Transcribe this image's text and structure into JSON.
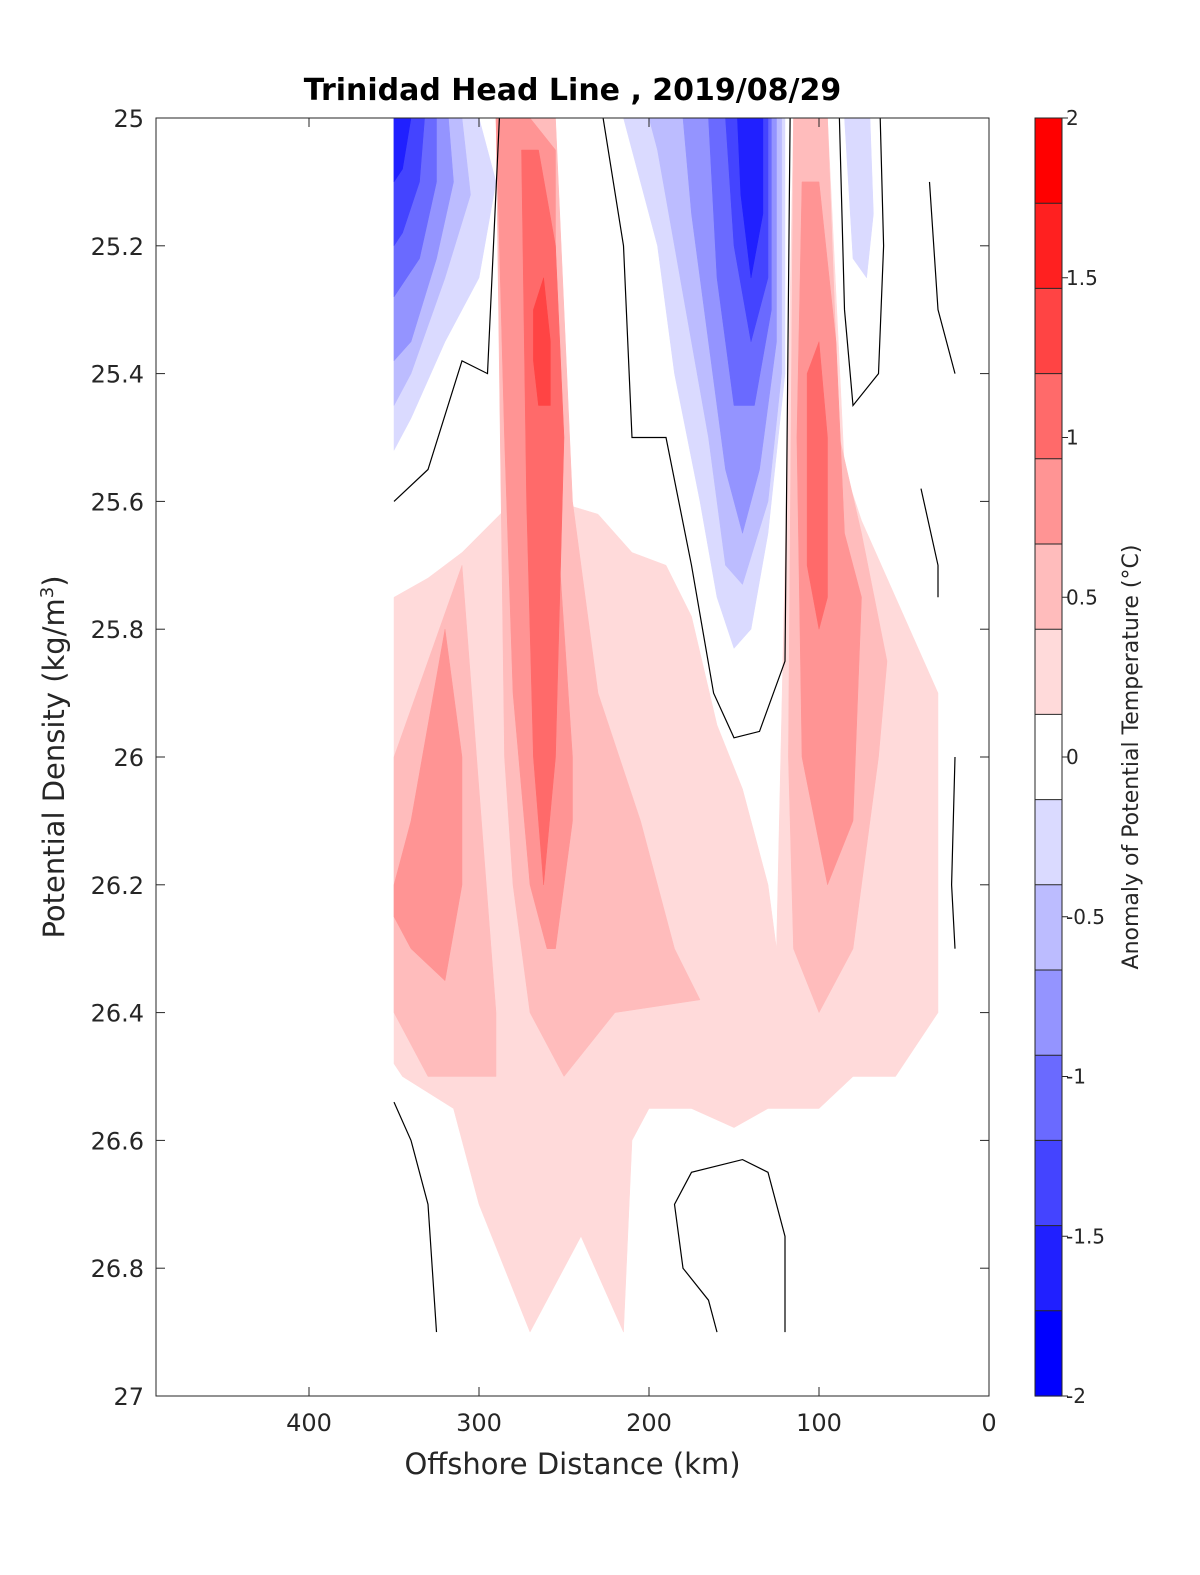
{
  "chart_data": {
    "type": "contour",
    "title": "Trinidad Head Line , 2019/08/29",
    "xlabel": "Offshore Distance (km)",
    "ylabel": "Potential Density (kg/m",
    "ylabel_sup": "3",
    "ylabel_close": ")",
    "xlim": [
      490,
      0
    ],
    "ylim": [
      25,
      27
    ],
    "x_reversed": true,
    "y_reversed": true,
    "xticks": [
      400,
      300,
      200,
      100,
      0
    ],
    "xtick_labels": [
      "400",
      "300",
      "200",
      "100",
      "0"
    ],
    "yticks": [
      25,
      25.2,
      25.4,
      25.6,
      25.8,
      26,
      26.2,
      26.4,
      26.6,
      26.8,
      27
    ],
    "ytick_labels": [
      "25",
      "25.2",
      "25.4",
      "25.6",
      "25.8",
      "26",
      "26.2",
      "26.4",
      "26.6",
      "26.8",
      "27"
    ],
    "colorbar": {
      "label": "Anomaly of Potential Temperature (°C)",
      "range": [
        -2,
        2
      ],
      "levels": [
        -2,
        -1.75,
        -1.5,
        -1.25,
        -1,
        -0.75,
        -0.5,
        -0.25,
        0.25,
        0.5,
        0.75,
        1,
        1.25,
        1.5,
        1.75,
        2
      ],
      "ticks": [
        2,
        1.5,
        1,
        0.5,
        0,
        -0.5,
        -1,
        -1.5,
        -2
      ],
      "tick_labels": [
        "2",
        "1.5",
        "1",
        "0.5",
        "0",
        "-0.5",
        "-1",
        "-1.5",
        "-2"
      ],
      "colors_top_to_bottom": [
        "#ff0000",
        "#ff2020",
        "#ff4444",
        "#ff6a6a",
        "#ff9494",
        "#ffbcbc",
        "#ffdada",
        "#ffffff",
        "#dadaff",
        "#bcbcff",
        "#9494ff",
        "#6a6aff",
        "#4444ff",
        "#2020ff",
        "#0000ff"
      ]
    },
    "regions": [
      {
        "level": 0.25,
        "color": "#ffdada",
        "polygon": [
          [
            350,
            25.75
          ],
          [
            330,
            25.72
          ],
          [
            310,
            25.68
          ],
          [
            280,
            25.6
          ],
          [
            255,
            25.6
          ],
          [
            230,
            25.62
          ],
          [
            210,
            25.68
          ],
          [
            190,
            25.7
          ],
          [
            175,
            25.78
          ],
          [
            160,
            25.95
          ],
          [
            145,
            26.05
          ],
          [
            130,
            26.2
          ],
          [
            125,
            26.3
          ],
          [
            120,
            25.7
          ],
          [
            115,
            25.0
          ],
          [
            95,
            25.0
          ],
          [
            85,
            25.55
          ],
          [
            75,
            25.63
          ],
          [
            55,
            25.75
          ],
          [
            30,
            25.9
          ],
          [
            30,
            26.4
          ],
          [
            55,
            26.5
          ],
          [
            80,
            26.5
          ],
          [
            100,
            26.55
          ],
          [
            130,
            26.55
          ],
          [
            150,
            26.58
          ],
          [
            175,
            26.55
          ],
          [
            200,
            26.55
          ],
          [
            210,
            26.6
          ],
          [
            215,
            26.9
          ],
          [
            240,
            26.75
          ],
          [
            270,
            26.9
          ],
          [
            300,
            26.7
          ],
          [
            315,
            26.55
          ],
          [
            345,
            26.5
          ],
          [
            350,
            26.48
          ]
        ]
      },
      {
        "level": 0.25,
        "color": "#ffdada",
        "polygon": [
          [
            290,
            25.0
          ],
          [
            285,
            25.58
          ],
          [
            270,
            25.6
          ],
          [
            260,
            25.0
          ]
        ]
      },
      {
        "level": 0.5,
        "color": "#ffbcbc",
        "polygon": [
          [
            350,
            26.0
          ],
          [
            330,
            25.85
          ],
          [
            310,
            25.7
          ],
          [
            290,
            26.4
          ],
          [
            290,
            26.5
          ],
          [
            330,
            26.5
          ],
          [
            350,
            26.4
          ]
        ]
      },
      {
        "level": 0.5,
        "color": "#ffbcbc",
        "polygon": [
          [
            290,
            25.0
          ],
          [
            275,
            25.0
          ],
          [
            255,
            25.0
          ],
          [
            245,
            25.6
          ],
          [
            230,
            25.9
          ],
          [
            205,
            26.1
          ],
          [
            185,
            26.3
          ],
          [
            170,
            26.38
          ],
          [
            220,
            26.4
          ],
          [
            250,
            26.5
          ],
          [
            270,
            26.4
          ],
          [
            280,
            26.2
          ],
          [
            285,
            26.0
          ]
        ]
      },
      {
        "level": 0.5,
        "color": "#ffbcbc",
        "polygon": [
          [
            115,
            25.0
          ],
          [
            95,
            25.0
          ],
          [
            88,
            25.5
          ],
          [
            75,
            25.65
          ],
          [
            60,
            25.85
          ],
          [
            65,
            26.0
          ],
          [
            80,
            26.3
          ],
          [
            100,
            26.4
          ],
          [
            115,
            26.3
          ],
          [
            118,
            26.0
          ]
        ]
      },
      {
        "level": 0.75,
        "color": "#ff9494",
        "polygon": [
          [
            290,
            25.0
          ],
          [
            270,
            25.0
          ],
          [
            255,
            25.05
          ],
          [
            255,
            25.6
          ],
          [
            245,
            26.0
          ],
          [
            245,
            26.1
          ],
          [
            255,
            26.3
          ],
          [
            260,
            26.3
          ],
          [
            270,
            26.2
          ],
          [
            280,
            25.9
          ],
          [
            285,
            25.5
          ]
        ]
      },
      {
        "level": 0.75,
        "color": "#ff9494",
        "polygon": [
          [
            350,
            26.2
          ],
          [
            340,
            26.1
          ],
          [
            320,
            25.8
          ],
          [
            310,
            26.0
          ],
          [
            310,
            26.2
          ],
          [
            320,
            26.35
          ],
          [
            340,
            26.3
          ],
          [
            350,
            26.25
          ]
        ]
      },
      {
        "level": 0.75,
        "color": "#ff9494",
        "polygon": [
          [
            110,
            25.1
          ],
          [
            100,
            25.1
          ],
          [
            90,
            25.35
          ],
          [
            85,
            25.65
          ],
          [
            75,
            25.75
          ],
          [
            80,
            26.1
          ],
          [
            95,
            26.2
          ],
          [
            110,
            26.0
          ],
          [
            113,
            25.5
          ]
        ]
      },
      {
        "level": 1.0,
        "color": "#ff6a6a",
        "polygon": [
          [
            275,
            25.05
          ],
          [
            265,
            25.05
          ],
          [
            255,
            25.2
          ],
          [
            250,
            25.5
          ],
          [
            255,
            26.0
          ],
          [
            262,
            26.2
          ],
          [
            268,
            26.0
          ],
          [
            272,
            25.6
          ]
        ]
      },
      {
        "level": 1.0,
        "color": "#ff6a6a",
        "polygon": [
          [
            107,
            25.4
          ],
          [
            100,
            25.35
          ],
          [
            95,
            25.5
          ],
          [
            95,
            25.75
          ],
          [
            100,
            25.8
          ],
          [
            107,
            25.7
          ]
        ]
      },
      {
        "level": 1.25,
        "color": "#ff4444",
        "polygon": [
          [
            268,
            25.3
          ],
          [
            262,
            25.25
          ],
          [
            258,
            25.35
          ],
          [
            258,
            25.45
          ],
          [
            265,
            25.45
          ],
          [
            268,
            25.38
          ]
        ]
      },
      {
        "level": -0.25,
        "color": "#dadaff",
        "polygon": [
          [
            350,
            25.0
          ],
          [
            300,
            25.0
          ],
          [
            290,
            25.1
          ],
          [
            300,
            25.25
          ],
          [
            320,
            25.35
          ],
          [
            340,
            25.47
          ],
          [
            350,
            25.52
          ]
        ]
      },
      {
        "level": -0.25,
        "color": "#dadaff",
        "polygon": [
          [
            215,
            25.0
          ],
          [
            120,
            25.0
          ],
          [
            120,
            25.4
          ],
          [
            130,
            25.65
          ],
          [
            140,
            25.8
          ],
          [
            150,
            25.83
          ],
          [
            160,
            25.75
          ],
          [
            170,
            25.6
          ],
          [
            185,
            25.4
          ],
          [
            195,
            25.2
          ],
          [
            210,
            25.05
          ]
        ]
      },
      {
        "level": -0.25,
        "color": "#dadaff",
        "polygon": [
          [
            85,
            25.0
          ],
          [
            70,
            25.0
          ],
          [
            68,
            25.15
          ],
          [
            72,
            25.25
          ],
          [
            80,
            25.22
          ]
        ]
      },
      {
        "level": -0.5,
        "color": "#bcbcff",
        "polygon": [
          [
            350,
            25.0
          ],
          [
            310,
            25.0
          ],
          [
            305,
            25.12
          ],
          [
            320,
            25.25
          ],
          [
            340,
            25.4
          ],
          [
            350,
            25.45
          ]
        ]
      },
      {
        "level": -0.5,
        "color": "#bcbcff",
        "polygon": [
          [
            200,
            25.0
          ],
          [
            122,
            25.0
          ],
          [
            122,
            25.4
          ],
          [
            130,
            25.6
          ],
          [
            145,
            25.73
          ],
          [
            155,
            25.7
          ],
          [
            165,
            25.5
          ],
          [
            175,
            25.35
          ],
          [
            185,
            25.2
          ],
          [
            195,
            25.05
          ]
        ]
      },
      {
        "level": -0.75,
        "color": "#9494ff",
        "polygon": [
          [
            350,
            25.0
          ],
          [
            318,
            25.0
          ],
          [
            315,
            25.1
          ],
          [
            325,
            25.22
          ],
          [
            340,
            25.35
          ],
          [
            350,
            25.38
          ]
        ]
      },
      {
        "level": -0.75,
        "color": "#9494ff",
        "polygon": [
          [
            180,
            25.0
          ],
          [
            125,
            25.0
          ],
          [
            125,
            25.35
          ],
          [
            135,
            25.55
          ],
          [
            145,
            25.65
          ],
          [
            155,
            25.55
          ],
          [
            165,
            25.35
          ],
          [
            175,
            25.15
          ]
        ]
      },
      {
        "level": -1.0,
        "color": "#6a6aff",
        "polygon": [
          [
            350,
            25.0
          ],
          [
            325,
            25.0
          ],
          [
            325,
            25.1
          ],
          [
            335,
            25.22
          ],
          [
            350,
            25.28
          ]
        ]
      },
      {
        "level": -1.0,
        "color": "#6a6aff",
        "polygon": [
          [
            165,
            25.0
          ],
          [
            128,
            25.0
          ],
          [
            128,
            25.3
          ],
          [
            138,
            25.45
          ],
          [
            150,
            25.45
          ],
          [
            160,
            25.25
          ]
        ]
      },
      {
        "level": -1.25,
        "color": "#4444ff",
        "polygon": [
          [
            350,
            25.0
          ],
          [
            332,
            25.0
          ],
          [
            335,
            25.1
          ],
          [
            345,
            25.18
          ],
          [
            350,
            25.2
          ]
        ]
      },
      {
        "level": -1.25,
        "color": "#4444ff",
        "polygon": [
          [
            155,
            25.0
          ],
          [
            130,
            25.0
          ],
          [
            130,
            25.25
          ],
          [
            140,
            25.35
          ],
          [
            150,
            25.2
          ]
        ]
      },
      {
        "level": -1.5,
        "color": "#2020ff",
        "polygon": [
          [
            350,
            25.0
          ],
          [
            340,
            25.0
          ],
          [
            345,
            25.08
          ],
          [
            350,
            25.1
          ]
        ]
      },
      {
        "level": -1.5,
        "color": "#2020ff",
        "polygon": [
          [
            148,
            25.0
          ],
          [
            133,
            25.0
          ],
          [
            133,
            25.15
          ],
          [
            140,
            25.25
          ],
          [
            146,
            25.12
          ]
        ]
      }
    ],
    "zero_contours": [
      [
        [
          350,
          25.6
        ],
        [
          330,
          25.55
        ],
        [
          310,
          25.38
        ],
        [
          295,
          25.4
        ],
        [
          288,
          25.0
        ]
      ],
      [
        [
          227,
          25.0
        ],
        [
          215,
          25.2
        ],
        [
          210,
          25.5
        ],
        [
          190,
          25.5
        ],
        [
          175,
          25.7
        ],
        [
          162,
          25.9
        ],
        [
          150,
          25.97
        ],
        [
          135,
          25.96
        ],
        [
          120,
          25.85
        ],
        [
          117,
          25.0
        ]
      ],
      [
        [
          64,
          25.0
        ],
        [
          62,
          25.2
        ],
        [
          65,
          25.4
        ],
        [
          80,
          25.45
        ],
        [
          85,
          25.3
        ],
        [
          88,
          25.0
        ]
      ],
      [
        [
          35,
          25.1
        ],
        [
          30,
          25.3
        ],
        [
          20,
          25.4
        ]
      ],
      [
        [
          40,
          25.58
        ],
        [
          30,
          25.7
        ],
        [
          30,
          25.75
        ]
      ],
      [
        [
          350,
          26.54
        ],
        [
          340,
          26.6
        ],
        [
          330,
          26.7
        ],
        [
          325,
          26.9
        ]
      ],
      [
        [
          160,
          26.9
        ],
        [
          165,
          26.85
        ],
        [
          180,
          26.8
        ],
        [
          185,
          26.7
        ],
        [
          175,
          26.65
        ],
        [
          145,
          26.63
        ],
        [
          130,
          26.65
        ],
        [
          120,
          26.75
        ],
        [
          120,
          26.9
        ]
      ],
      [
        [
          20,
          26.0
        ],
        [
          22,
          26.2
        ],
        [
          20,
          26.3
        ]
      ]
    ]
  }
}
